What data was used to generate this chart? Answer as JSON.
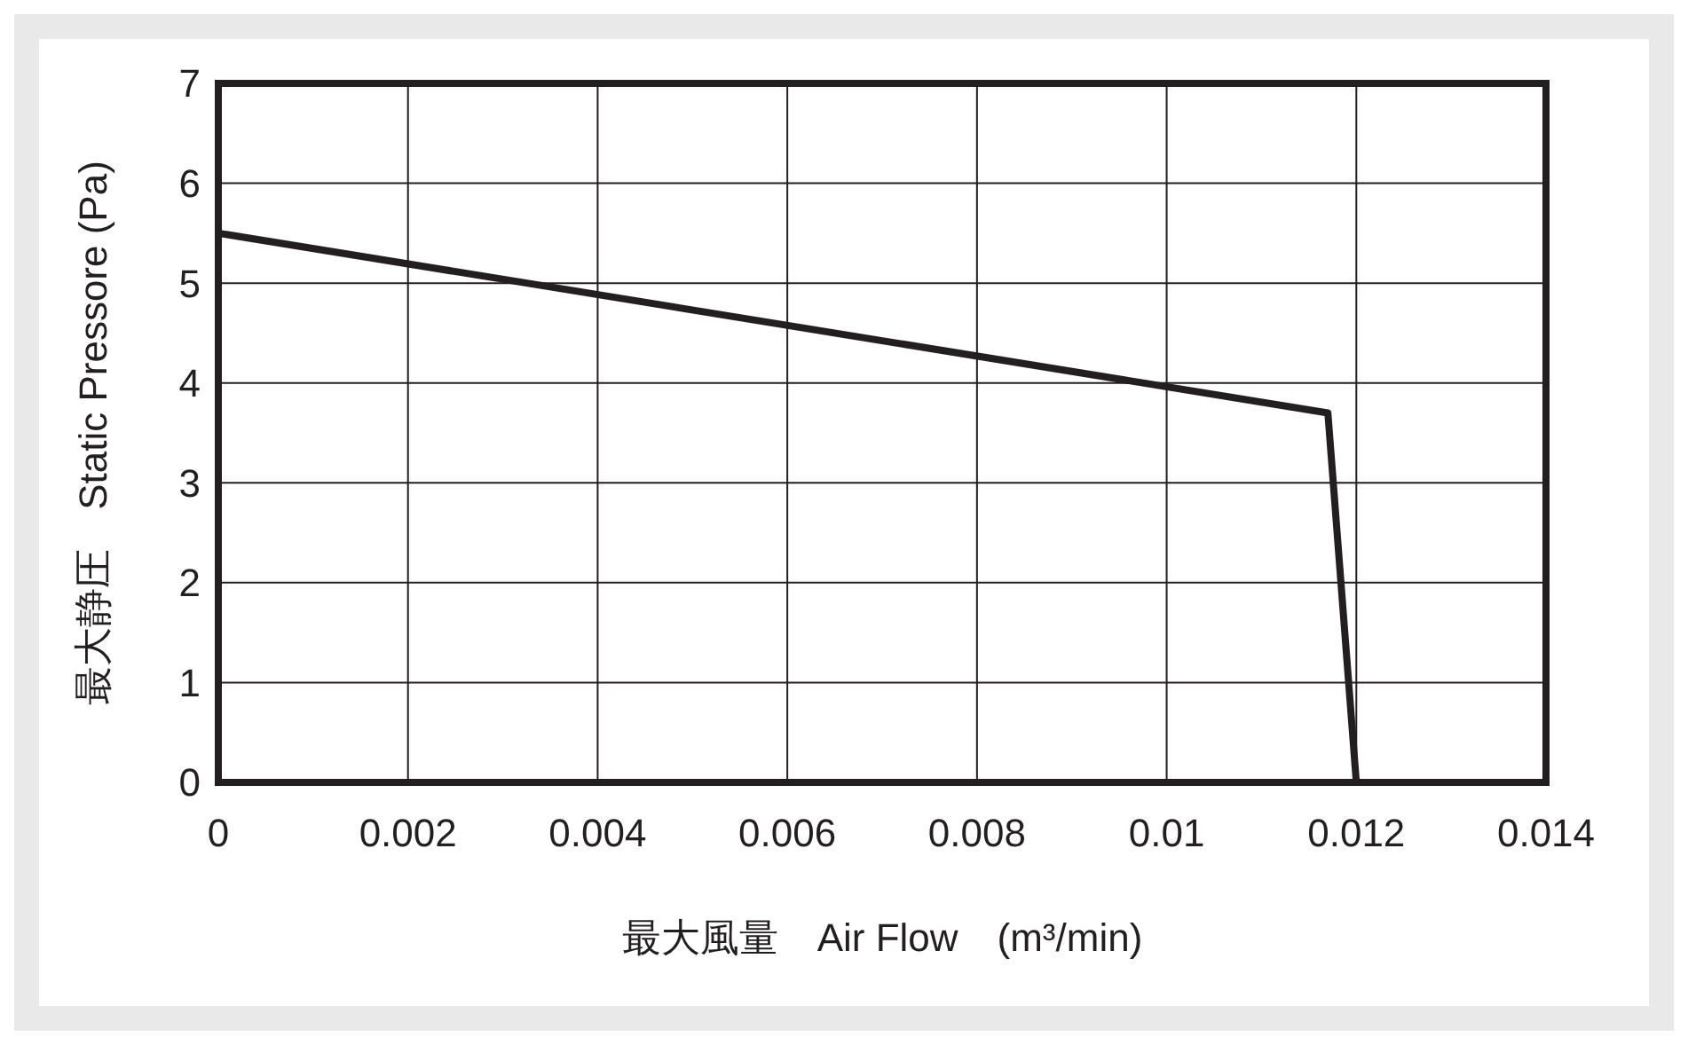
{
  "chart_data": {
    "type": "line",
    "xlabel": "最大風量　Air Flow　(m³/min)",
    "ylabel": "最大静圧　Static Pressore (Pa)",
    "x": [
      0,
      0.0117,
      0.012
    ],
    "series": [
      {
        "color": "#231f20",
        "values": [
          5.5,
          3.7,
          0
        ]
      }
    ],
    "xlim": [
      0,
      0.014
    ],
    "xticks": [
      0,
      0.002,
      0.004,
      0.006,
      0.008,
      0.01,
      0.012,
      0.014
    ],
    "ylim": [
      0,
      7
    ],
    "yticks": [
      0,
      1,
      2,
      3,
      4,
      5,
      6,
      7
    ],
    "grid": true,
    "marker": "none",
    "line_style": "solid"
  }
}
